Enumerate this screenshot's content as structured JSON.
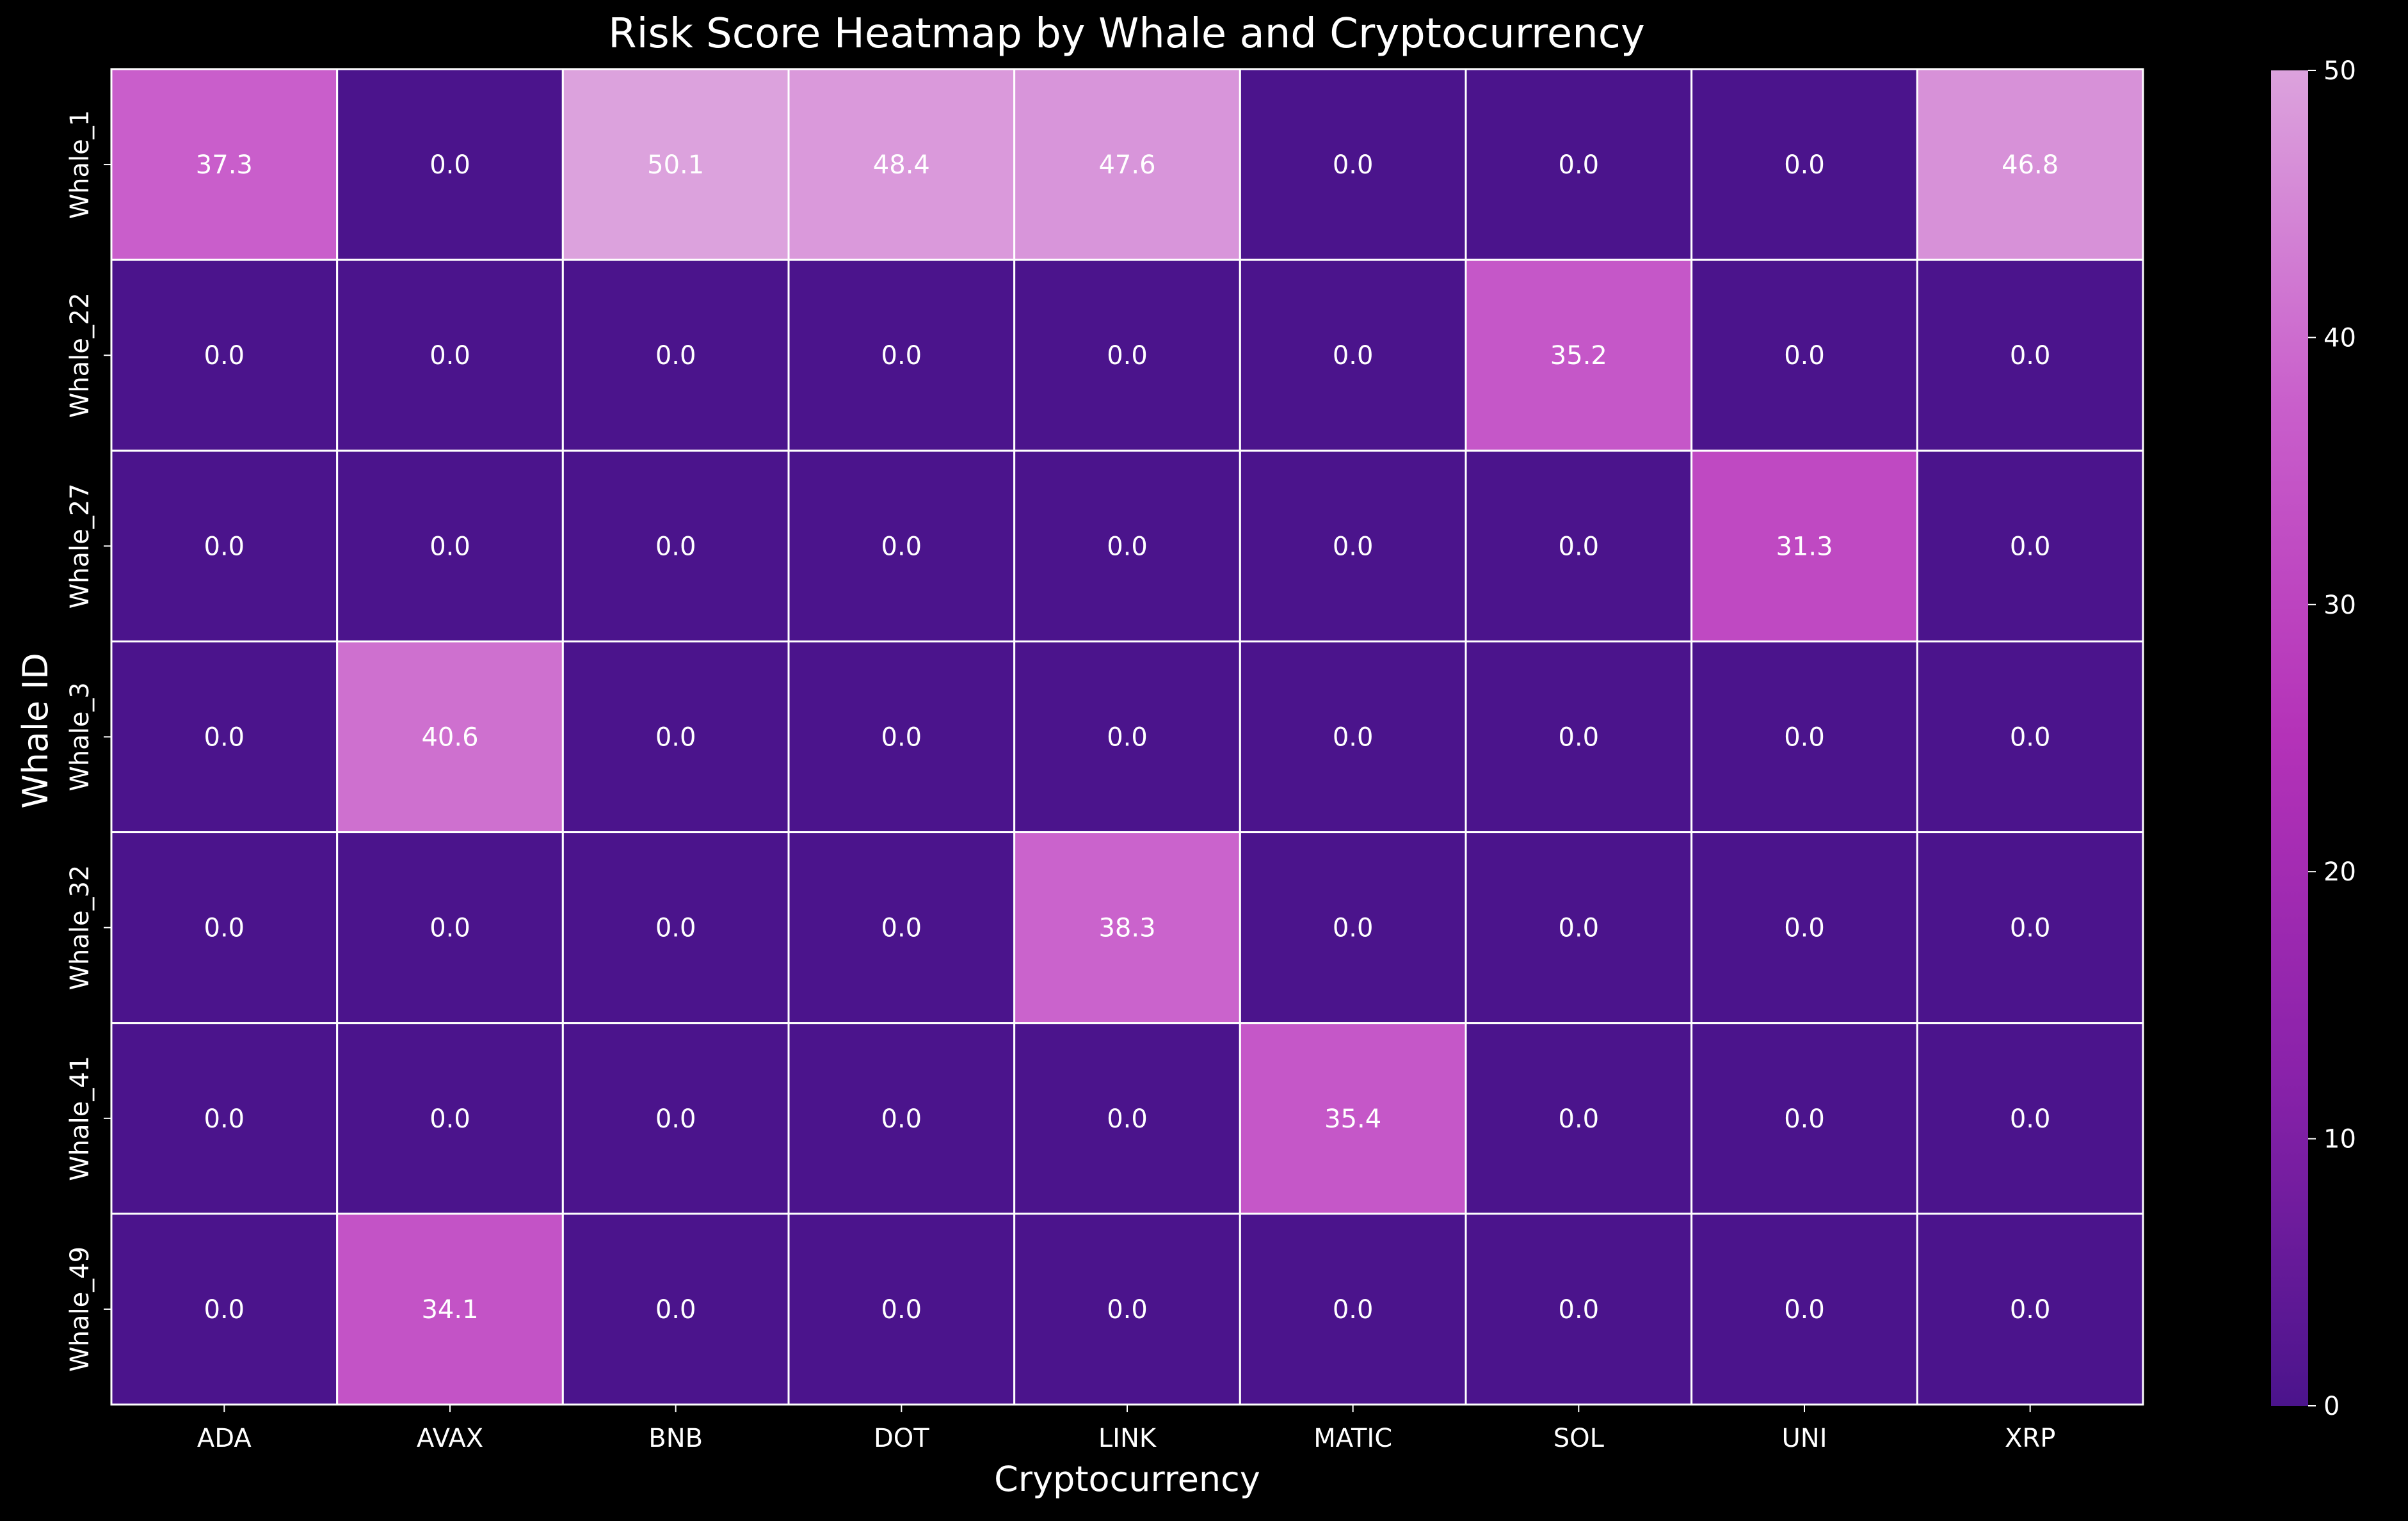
{
  "chart_data": {
    "type": "heatmap",
    "title": "Risk Score Heatmap by Whale and Cryptocurrency",
    "xlabel": "Cryptocurrency",
    "ylabel": "Whale ID",
    "x_categories": [
      "ADA",
      "AVAX",
      "BNB",
      "DOT",
      "LINK",
      "MATIC",
      "SOL",
      "UNI",
      "XRP"
    ],
    "y_categories": [
      "Whale_1",
      "Whale_22",
      "Whale_27",
      "Whale_3",
      "Whale_32",
      "Whale_41",
      "Whale_49"
    ],
    "values": [
      [
        37.3,
        0.0,
        50.1,
        48.4,
        47.6,
        0.0,
        0.0,
        0.0,
        46.8
      ],
      [
        0.0,
        0.0,
        0.0,
        0.0,
        0.0,
        0.0,
        35.2,
        0.0,
        0.0
      ],
      [
        0.0,
        0.0,
        0.0,
        0.0,
        0.0,
        0.0,
        0.0,
        31.3,
        0.0
      ],
      [
        0.0,
        40.6,
        0.0,
        0.0,
        0.0,
        0.0,
        0.0,
        0.0,
        0.0
      ],
      [
        0.0,
        0.0,
        0.0,
        0.0,
        38.3,
        0.0,
        0.0,
        0.0,
        0.0
      ],
      [
        0.0,
        0.0,
        0.0,
        0.0,
        0.0,
        35.4,
        0.0,
        0.0,
        0.0
      ],
      [
        0.0,
        34.1,
        0.0,
        0.0,
        0.0,
        0.0,
        0.0,
        0.0,
        0.0
      ]
    ],
    "colorbar": {
      "range": [
        0,
        50
      ],
      "ticks": [
        "0",
        "10",
        "20",
        "30",
        "40",
        "50"
      ],
      "colors": [
        "#4b148c",
        "#8a22aa",
        "#b432b8",
        "#c95fcb",
        "#dca2dd"
      ]
    },
    "background": "#000000",
    "text_color": "#ffffff",
    "grid_line_color": "#ffffff"
  }
}
